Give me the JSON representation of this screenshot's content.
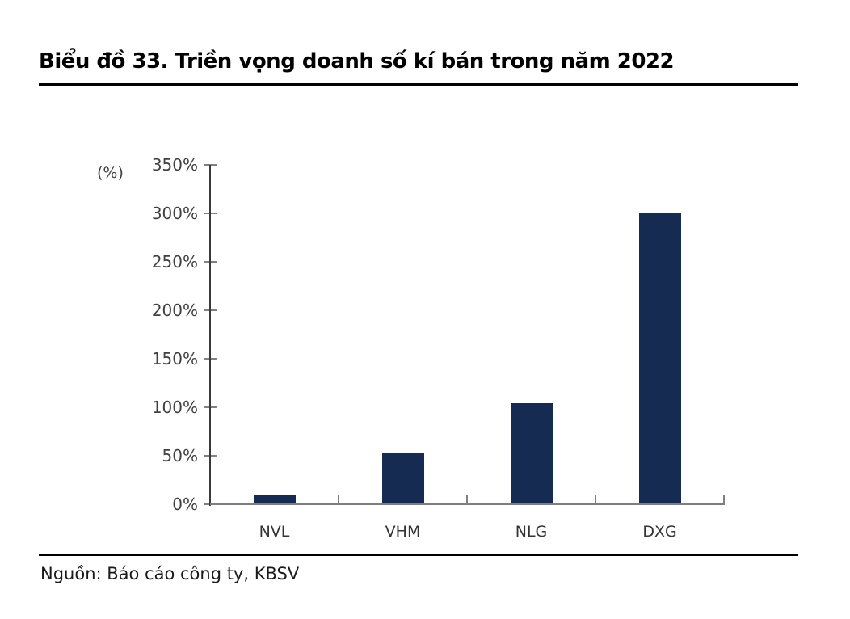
{
  "header": {
    "title": "Biểu đồ 33. Triền vọng doanh số kí bán trong năm 2022"
  },
  "source_note": "Nguồn: Báo cáo công ty, KBSV",
  "chart_data": {
    "type": "bar",
    "title": "Biểu đồ 33. Triền vọng doanh số kí bán trong năm 2022",
    "categories": [
      "NVL",
      "VHM",
      "NLG",
      "DXG"
    ],
    "values": [
      10,
      53,
      104,
      300
    ],
    "xlabel": "",
    "ylabel": "(%)",
    "ylim": [
      0,
      350
    ],
    "ytick_step": 50,
    "ytick_labels": [
      "0%",
      "50%",
      "100%",
      "150%",
      "200%",
      "250%",
      "300%",
      "350%"
    ],
    "grid": false,
    "legend": "none",
    "source": "Nguồn: Báo cáo công ty, KBSV",
    "colors": {
      "bar": "#162B52",
      "y_axis_line": "#3A3A3A",
      "x_axis_line": "#7F7F7F",
      "tick_line": "#808080",
      "tick_text": "#404040",
      "title_text": "#000000",
      "rule": "#000000"
    }
  }
}
